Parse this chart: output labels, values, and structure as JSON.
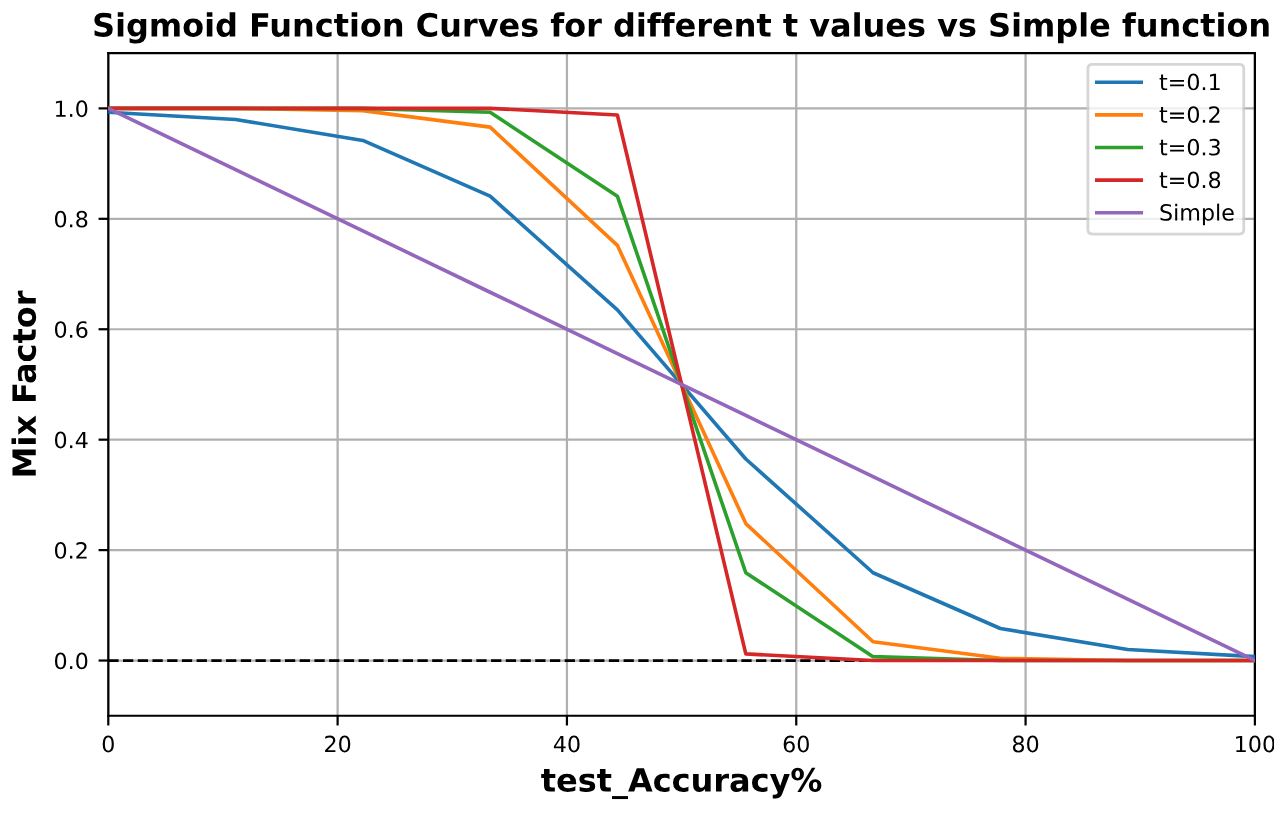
{
  "chart_data": {
    "type": "line",
    "title": "Sigmoid Function Curves for different t values vs Simple function",
    "xlabel": "test_Accuracy%",
    "ylabel": "Mix Factor",
    "x": [
      0,
      11.1,
      22.2,
      33.3,
      44.4,
      55.6,
      66.7,
      77.8,
      88.9,
      100
    ],
    "series": [
      {
        "name": "t=0.1",
        "color": "#1f77b4",
        "values": [
          0.993,
          0.98,
          0.942,
          0.841,
          0.635,
          0.365,
          0.159,
          0.058,
          0.02,
          0.007
        ]
      },
      {
        "name": "t=0.2",
        "color": "#ff7f0e",
        "values": [
          1.0,
          1.0,
          0.996,
          0.966,
          0.752,
          0.248,
          0.034,
          0.004,
          0.0,
          0.0
        ]
      },
      {
        "name": "t=0.3",
        "color": "#2ca02c",
        "values": [
          1.0,
          1.0,
          1.0,
          0.993,
          0.841,
          0.159,
          0.007,
          0.0,
          0.0,
          0.0
        ]
      },
      {
        "name": "t=0.8",
        "color": "#d62728",
        "values": [
          1.0,
          1.0,
          1.0,
          1.0,
          0.988,
          0.012,
          0.0,
          0.0,
          0.0,
          0.0
        ]
      },
      {
        "name": "Simple",
        "color": "#9467bd",
        "values": [
          1.0,
          0.889,
          0.778,
          0.667,
          0.556,
          0.444,
          0.333,
          0.222,
          0.111,
          0.0
        ]
      }
    ],
    "xlim": [
      0,
      100
    ],
    "ylim": [
      -0.1,
      1.1
    ],
    "xticks": [
      0,
      20,
      40,
      60,
      80,
      100
    ],
    "yticks": [
      {
        "value": 0,
        "label": "0.0"
      },
      0.2,
      0.4,
      0.6,
      0.8,
      {
        "value": 1,
        "label": "1.0"
      }
    ],
    "ref_lines": [
      {
        "axis": "y",
        "value": 0,
        "label": null,
        "color": "#000000",
        "line_style": "dashed"
      }
    ],
    "grid": true,
    "legend": "top right",
    "marker": "none",
    "line_style": "solid"
  }
}
